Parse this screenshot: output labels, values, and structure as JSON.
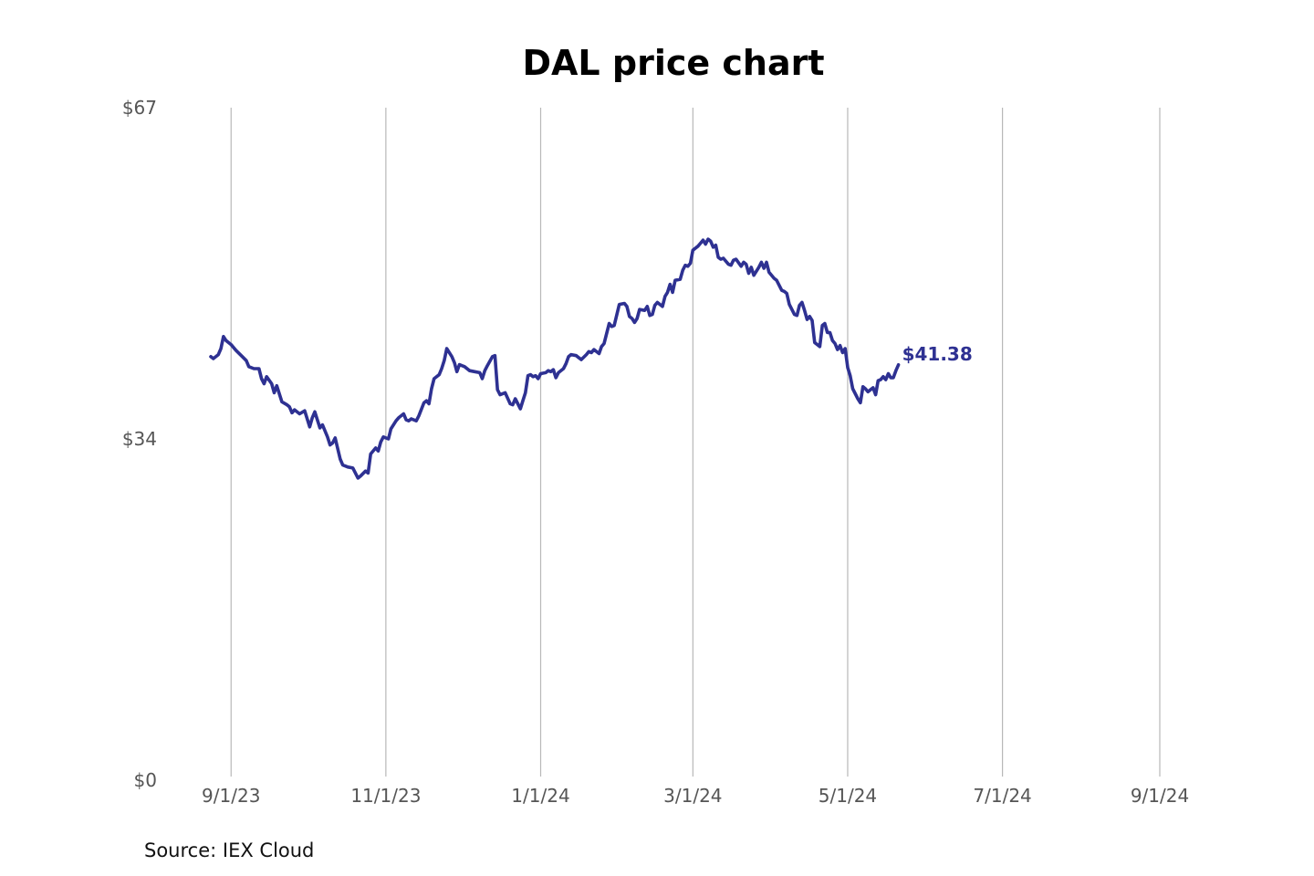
{
  "colors": {
    "line": "#2e3192",
    "grid": "#b8b8b8",
    "text": "#555555"
  },
  "chart_data": {
    "type": "line",
    "title": "DAL price chart",
    "source": "Source: IEX Cloud",
    "xlabel": "",
    "ylabel": "",
    "ylim": [
      0,
      67
    ],
    "y_ticks": [
      {
        "value": 67,
        "label": "$67"
      },
      {
        "value": 34,
        "label": "$34"
      },
      {
        "value": 0,
        "label": "$0"
      }
    ],
    "x_range": [
      -8,
      387
    ],
    "x_ticks": [
      {
        "day": 0,
        "label": "9/1/23"
      },
      {
        "day": 61,
        "label": "11/1/23"
      },
      {
        "day": 122,
        "label": "1/1/24"
      },
      {
        "day": 182,
        "label": "3/1/24"
      },
      {
        "day": 243,
        "label": "5/1/24"
      },
      {
        "day": 304,
        "label": "7/1/24"
      },
      {
        "day": 366,
        "label": "9/1/24"
      }
    ],
    "grid": "vertical",
    "last_label": "$41.38",
    "series": [
      {
        "name": "DAL",
        "x_unit": "days since 9/1/23",
        "points": [
          [
            -8,
            42.2
          ],
          [
            -7,
            42.0
          ],
          [
            -5,
            42.4
          ],
          [
            -4,
            43.0
          ],
          [
            -3,
            44.2
          ],
          [
            -2,
            43.8
          ],
          [
            0,
            43.4
          ],
          [
            2,
            42.8
          ],
          [
            4,
            42.3
          ],
          [
            6,
            41.8
          ],
          [
            7,
            41.2
          ],
          [
            9,
            41.0
          ],
          [
            11,
            41.0
          ],
          [
            12,
            40.0
          ],
          [
            13,
            39.5
          ],
          [
            14,
            40.2
          ],
          [
            16,
            39.5
          ],
          [
            17,
            38.6
          ],
          [
            18,
            39.3
          ],
          [
            20,
            37.7
          ],
          [
            22,
            37.4
          ],
          [
            23,
            37.2
          ],
          [
            24,
            36.6
          ],
          [
            25,
            36.9
          ],
          [
            27,
            36.5
          ],
          [
            29,
            36.8
          ],
          [
            31,
            35.2
          ],
          [
            32,
            36.1
          ],
          [
            33,
            36.7
          ],
          [
            35,
            35.1
          ],
          [
            36,
            35.4
          ],
          [
            38,
            34.2
          ],
          [
            39,
            33.4
          ],
          [
            40,
            33.6
          ],
          [
            41,
            34.1
          ],
          [
            43,
            32.0
          ],
          [
            44,
            31.4
          ],
          [
            46,
            31.2
          ],
          [
            48,
            31.1
          ],
          [
            49,
            30.6
          ],
          [
            50,
            30.1
          ],
          [
            51,
            30.3
          ],
          [
            53,
            30.8
          ],
          [
            54,
            30.6
          ],
          [
            55,
            32.5
          ],
          [
            57,
            33.1
          ],
          [
            58,
            32.8
          ],
          [
            59,
            33.7
          ],
          [
            60,
            34.2
          ],
          [
            62,
            34.0
          ],
          [
            63,
            35.0
          ],
          [
            65,
            35.8
          ],
          [
            66,
            36.1
          ],
          [
            68,
            36.5
          ],
          [
            69,
            35.9
          ],
          [
            70,
            35.8
          ],
          [
            71,
            36.0
          ],
          [
            73,
            35.8
          ],
          [
            74,
            36.3
          ],
          [
            76,
            37.6
          ],
          [
            77,
            37.8
          ],
          [
            78,
            37.5
          ],
          [
            79,
            39.0
          ],
          [
            80,
            40.0
          ],
          [
            82,
            40.4
          ],
          [
            83,
            41.0
          ],
          [
            84,
            41.8
          ],
          [
            85,
            43.0
          ],
          [
            87,
            42.2
          ],
          [
            88,
            41.6
          ],
          [
            89,
            40.7
          ],
          [
            90,
            41.4
          ],
          [
            92,
            41.2
          ],
          [
            94,
            40.8
          ],
          [
            96,
            40.7
          ],
          [
            98,
            40.6
          ],
          [
            99,
            40.0
          ],
          [
            100,
            40.8
          ],
          [
            101,
            41.3
          ],
          [
            103,
            42.2
          ],
          [
            104,
            42.3
          ],
          [
            105,
            38.9
          ],
          [
            106,
            38.4
          ],
          [
            108,
            38.6
          ],
          [
            110,
            37.5
          ],
          [
            111,
            37.4
          ],
          [
            112,
            38.0
          ],
          [
            114,
            37.0
          ],
          [
            115,
            37.8
          ],
          [
            116,
            38.6
          ],
          [
            117,
            40.3
          ],
          [
            118,
            40.4
          ],
          [
            119,
            40.2
          ],
          [
            120,
            40.3
          ],
          [
            121,
            40.0
          ],
          [
            122,
            40.5
          ],
          [
            124,
            40.6
          ],
          [
            125,
            40.8
          ],
          [
            126,
            40.7
          ],
          [
            127,
            40.9
          ],
          [
            128,
            40.1
          ],
          [
            129,
            40.6
          ],
          [
            131,
            41.0
          ],
          [
            132,
            41.5
          ],
          [
            133,
            42.2
          ],
          [
            134,
            42.4
          ],
          [
            136,
            42.3
          ],
          [
            137,
            42.1
          ],
          [
            138,
            41.9
          ],
          [
            140,
            42.4
          ],
          [
            141,
            42.7
          ],
          [
            142,
            42.6
          ],
          [
            143,
            42.9
          ],
          [
            145,
            42.5
          ],
          [
            146,
            43.2
          ],
          [
            147,
            43.5
          ],
          [
            149,
            45.5
          ],
          [
            150,
            45.2
          ],
          [
            151,
            45.3
          ],
          [
            153,
            47.4
          ],
          [
            155,
            47.5
          ],
          [
            156,
            47.2
          ],
          [
            157,
            46.2
          ],
          [
            158,
            46.0
          ],
          [
            159,
            45.6
          ],
          [
            160,
            46.0
          ],
          [
            161,
            46.9
          ],
          [
            163,
            46.8
          ],
          [
            164,
            47.2
          ],
          [
            165,
            46.3
          ],
          [
            166,
            46.4
          ],
          [
            167,
            47.3
          ],
          [
            168,
            47.6
          ],
          [
            170,
            47.2
          ],
          [
            171,
            48.2
          ],
          [
            172,
            48.6
          ],
          [
            173,
            49.4
          ],
          [
            174,
            48.6
          ],
          [
            175,
            49.8
          ],
          [
            177,
            49.9
          ],
          [
            178,
            50.8
          ],
          [
            179,
            51.3
          ],
          [
            180,
            51.2
          ],
          [
            181,
            51.5
          ],
          [
            182,
            52.8
          ],
          [
            184,
            53.2
          ],
          [
            185,
            53.5
          ],
          [
            186,
            53.8
          ],
          [
            187,
            53.4
          ],
          [
            188,
            53.9
          ],
          [
            189,
            53.7
          ],
          [
            190,
            53.1
          ],
          [
            191,
            53.3
          ],
          [
            192,
            52.1
          ],
          [
            193,
            51.9
          ],
          [
            194,
            52.0
          ],
          [
            196,
            51.4
          ],
          [
            197,
            51.3
          ],
          [
            198,
            51.8
          ],
          [
            199,
            51.9
          ],
          [
            201,
            51.2
          ],
          [
            202,
            51.6
          ],
          [
            203,
            51.4
          ],
          [
            204,
            50.5
          ],
          [
            205,
            51.1
          ],
          [
            206,
            50.3
          ],
          [
            208,
            51.1
          ],
          [
            209,
            51.6
          ],
          [
            210,
            51.0
          ],
          [
            211,
            51.6
          ],
          [
            212,
            50.6
          ],
          [
            214,
            50.0
          ],
          [
            215,
            49.8
          ],
          [
            216,
            49.3
          ],
          [
            217,
            48.8
          ],
          [
            218,
            48.7
          ],
          [
            219,
            48.5
          ],
          [
            220,
            47.4
          ],
          [
            222,
            46.4
          ],
          [
            223,
            46.3
          ],
          [
            224,
            47.3
          ],
          [
            225,
            47.6
          ],
          [
            226,
            46.8
          ],
          [
            227,
            45.9
          ],
          [
            228,
            46.2
          ],
          [
            229,
            45.8
          ],
          [
            230,
            43.6
          ],
          [
            231,
            43.4
          ],
          [
            232,
            43.2
          ],
          [
            233,
            45.3
          ],
          [
            234,
            45.5
          ],
          [
            235,
            44.6
          ],
          [
            236,
            44.6
          ],
          [
            237,
            43.8
          ],
          [
            238,
            43.5
          ],
          [
            239,
            42.9
          ],
          [
            240,
            43.3
          ],
          [
            241,
            42.6
          ],
          [
            242,
            43.0
          ],
          [
            243,
            41.1
          ],
          [
            244,
            40.3
          ],
          [
            245,
            39.0
          ],
          [
            246,
            38.5
          ],
          [
            247,
            38.0
          ],
          [
            248,
            37.6
          ],
          [
            249,
            39.2
          ],
          [
            250,
            39.0
          ],
          [
            251,
            38.7
          ],
          [
            252,
            38.9
          ],
          [
            253,
            39.1
          ],
          [
            254,
            38.4
          ],
          [
            255,
            39.8
          ],
          [
            256,
            39.9
          ],
          [
            257,
            40.2
          ],
          [
            258,
            39.9
          ],
          [
            259,
            40.5
          ],
          [
            260,
            40.1
          ],
          [
            261,
            40.1
          ],
          [
            262,
            40.8
          ],
          [
            263,
            41.38
          ]
        ]
      }
    ]
  }
}
